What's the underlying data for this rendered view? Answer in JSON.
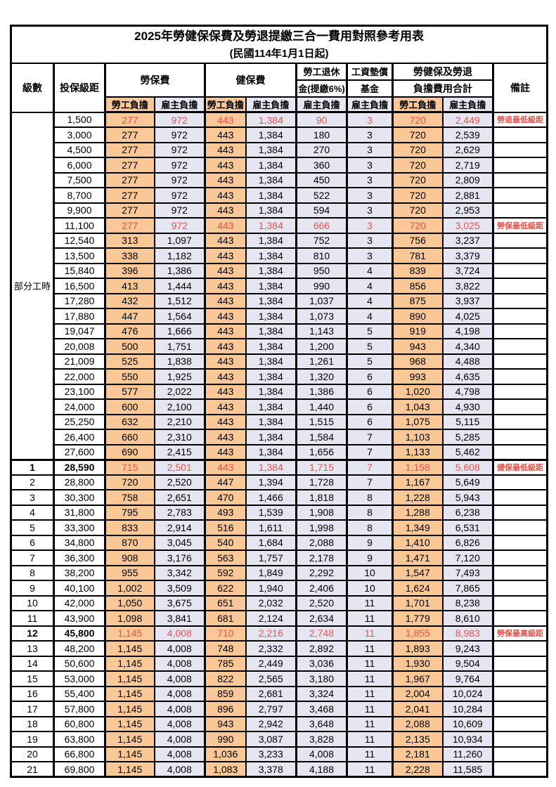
{
  "title": "2025年勞健保保費及勞退提繳三合一費用對照參考用表",
  "subtitle": "(民國114年1月1日起)",
  "columns": {
    "level": "級數",
    "bracket": "投保級距",
    "labor_insurance": "勞保費",
    "health_insurance": "健保費",
    "pension_line1": "勞工退休",
    "pension_line2": "金(提繳6%)",
    "wage_fund_line1": "工資墊償",
    "wage_fund_line2": "基金",
    "total_line1": "勞健保及勞退",
    "total_line2": "負擔費用合計",
    "note": "備註",
    "employee_burden": "勞工負擔",
    "employer_burden": "雇主負擔"
  },
  "colors": {
    "employee_bg": "#FAC896",
    "employer_bg": "#E6E5F2",
    "highlight_red": "#E8524C"
  },
  "part_time_label": "部分工時",
  "part_time_rowspan": 23,
  "rows": [
    {
      "level": "",
      "bracket": "1,500",
      "values": [
        "277",
        "972",
        "443",
        "1,384",
        "90",
        "3",
        "720",
        "2,449"
      ],
      "note": "勞退最低級距",
      "highlight": true
    },
    {
      "level": "",
      "bracket": "3,000",
      "values": [
        "277",
        "972",
        "443",
        "1,384",
        "180",
        "3",
        "720",
        "2,539"
      ],
      "note": ""
    },
    {
      "level": "",
      "bracket": "4,500",
      "values": [
        "277",
        "972",
        "443",
        "1,384",
        "270",
        "3",
        "720",
        "2,629"
      ],
      "note": ""
    },
    {
      "level": "",
      "bracket": "6,000",
      "values": [
        "277",
        "972",
        "443",
        "1,384",
        "360",
        "3",
        "720",
        "2,719"
      ],
      "note": ""
    },
    {
      "level": "",
      "bracket": "7,500",
      "values": [
        "277",
        "972",
        "443",
        "1,384",
        "450",
        "3",
        "720",
        "2,809"
      ],
      "note": ""
    },
    {
      "level": "",
      "bracket": "8,700",
      "values": [
        "277",
        "972",
        "443",
        "1,384",
        "522",
        "3",
        "720",
        "2,881"
      ],
      "note": ""
    },
    {
      "level": "",
      "bracket": "9,900",
      "values": [
        "277",
        "972",
        "443",
        "1,384",
        "594",
        "3",
        "720",
        "2,953"
      ],
      "note": ""
    },
    {
      "level": "",
      "bracket": "11,100",
      "values": [
        "277",
        "972",
        "443",
        "1,384",
        "666",
        "3",
        "720",
        "3,025"
      ],
      "note": "勞保最低級距",
      "highlight": true
    },
    {
      "level": "",
      "bracket": "12,540",
      "values": [
        "313",
        "1,097",
        "443",
        "1,384",
        "752",
        "3",
        "756",
        "3,237"
      ],
      "note": ""
    },
    {
      "level": "",
      "bracket": "13,500",
      "values": [
        "338",
        "1,182",
        "443",
        "1,384",
        "810",
        "3",
        "781",
        "3,379"
      ],
      "note": ""
    },
    {
      "level": "",
      "bracket": "15,840",
      "values": [
        "396",
        "1,386",
        "443",
        "1,384",
        "950",
        "4",
        "839",
        "3,724"
      ],
      "note": ""
    },
    {
      "level": "",
      "bracket": "16,500",
      "values": [
        "413",
        "1,444",
        "443",
        "1,384",
        "990",
        "4",
        "856",
        "3,822"
      ],
      "note": ""
    },
    {
      "level": "",
      "bracket": "17,280",
      "values": [
        "432",
        "1,512",
        "443",
        "1,384",
        "1,037",
        "4",
        "875",
        "3,937"
      ],
      "note": ""
    },
    {
      "level": "",
      "bracket": "17,880",
      "values": [
        "447",
        "1,564",
        "443",
        "1,384",
        "1,073",
        "4",
        "890",
        "4,025"
      ],
      "note": ""
    },
    {
      "level": "",
      "bracket": "19,047",
      "values": [
        "476",
        "1,666",
        "443",
        "1,384",
        "1,143",
        "5",
        "919",
        "4,198"
      ],
      "note": ""
    },
    {
      "level": "",
      "bracket": "20,008",
      "values": [
        "500",
        "1,751",
        "443",
        "1,384",
        "1,200",
        "5",
        "943",
        "4,340"
      ],
      "note": ""
    },
    {
      "level": "",
      "bracket": "21,009",
      "values": [
        "525",
        "1,838",
        "443",
        "1,384",
        "1,261",
        "5",
        "968",
        "4,488"
      ],
      "note": ""
    },
    {
      "level": "",
      "bracket": "22,000",
      "values": [
        "550",
        "1,925",
        "443",
        "1,384",
        "1,320",
        "6",
        "993",
        "4,635"
      ],
      "note": ""
    },
    {
      "level": "",
      "bracket": "23,100",
      "values": [
        "577",
        "2,022",
        "443",
        "1,384",
        "1,386",
        "6",
        "1,020",
        "4,798"
      ],
      "note": ""
    },
    {
      "level": "",
      "bracket": "24,000",
      "values": [
        "600",
        "2,100",
        "443",
        "1,384",
        "1,440",
        "6",
        "1,043",
        "4,930"
      ],
      "note": ""
    },
    {
      "level": "",
      "bracket": "25,250",
      "values": [
        "632",
        "2,210",
        "443",
        "1,384",
        "1,515",
        "6",
        "1,075",
        "5,115"
      ],
      "note": ""
    },
    {
      "level": "",
      "bracket": "26,400",
      "values": [
        "660",
        "2,310",
        "443",
        "1,384",
        "1,584",
        "7",
        "1,103",
        "5,285"
      ],
      "note": ""
    },
    {
      "level": "",
      "bracket": "27,600",
      "values": [
        "690",
        "2,415",
        "443",
        "1,384",
        "1,656",
        "7",
        "1,133",
        "5,462"
      ],
      "note": ""
    },
    {
      "level": "1",
      "bracket": "28,590",
      "values": [
        "715",
        "2,501",
        "443",
        "1,384",
        "1,715",
        "7",
        "1,158",
        "5,608"
      ],
      "note": "健保最低級距",
      "highlight": true,
      "id_bold": true,
      "thick_top": true
    },
    {
      "level": "2",
      "bracket": "28,800",
      "values": [
        "720",
        "2,520",
        "447",
        "1,394",
        "1,728",
        "7",
        "1,167",
        "5,649"
      ],
      "note": ""
    },
    {
      "level": "3",
      "bracket": "30,300",
      "values": [
        "758",
        "2,651",
        "470",
        "1,466",
        "1,818",
        "8",
        "1,228",
        "5,943"
      ],
      "note": ""
    },
    {
      "level": "4",
      "bracket": "31,800",
      "values": [
        "795",
        "2,783",
        "493",
        "1,539",
        "1,908",
        "8",
        "1,288",
        "6,238"
      ],
      "note": ""
    },
    {
      "level": "5",
      "bracket": "33,300",
      "values": [
        "833",
        "2,914",
        "516",
        "1,611",
        "1,998",
        "8",
        "1,349",
        "6,531"
      ],
      "note": ""
    },
    {
      "level": "6",
      "bracket": "34,800",
      "values": [
        "870",
        "3,045",
        "540",
        "1,684",
        "2,088",
        "9",
        "1,410",
        "6,826"
      ],
      "note": ""
    },
    {
      "level": "7",
      "bracket": "36,300",
      "values": [
        "908",
        "3,176",
        "563",
        "1,757",
        "2,178",
        "9",
        "1,471",
        "7,120"
      ],
      "note": ""
    },
    {
      "level": "8",
      "bracket": "38,200",
      "values": [
        "955",
        "3,342",
        "592",
        "1,849",
        "2,292",
        "10",
        "1,547",
        "7,493"
      ],
      "note": ""
    },
    {
      "level": "9",
      "bracket": "40,100",
      "values": [
        "1,002",
        "3,509",
        "622",
        "1,940",
        "2,406",
        "10",
        "1,624",
        "7,865"
      ],
      "note": ""
    },
    {
      "level": "10",
      "bracket": "42,000",
      "values": [
        "1,050",
        "3,675",
        "651",
        "2,032",
        "2,520",
        "11",
        "1,701",
        "8,238"
      ],
      "note": ""
    },
    {
      "level": "11",
      "bracket": "43,900",
      "values": [
        "1,098",
        "3,841",
        "681",
        "2,124",
        "2,634",
        "11",
        "1,779",
        "8,610"
      ],
      "note": ""
    },
    {
      "level": "12",
      "bracket": "45,800",
      "values": [
        "1,145",
        "4,008",
        "710",
        "2,216",
        "2,748",
        "11",
        "1,855",
        "8,983"
      ],
      "note": "勞保最高級距",
      "highlight": true,
      "id_bold": true
    },
    {
      "level": "13",
      "bracket": "48,200",
      "values": [
        "1,145",
        "4,008",
        "748",
        "2,332",
        "2,892",
        "11",
        "1,893",
        "9,243"
      ],
      "note": ""
    },
    {
      "level": "14",
      "bracket": "50,600",
      "values": [
        "1,145",
        "4,008",
        "785",
        "2,449",
        "3,036",
        "11",
        "1,930",
        "9,504"
      ],
      "note": ""
    },
    {
      "level": "15",
      "bracket": "53,000",
      "values": [
        "1,145",
        "4,008",
        "822",
        "2,565",
        "3,180",
        "11",
        "1,967",
        "9,764"
      ],
      "note": ""
    },
    {
      "level": "16",
      "bracket": "55,400",
      "values": [
        "1,145",
        "4,008",
        "859",
        "2,681",
        "3,324",
        "11",
        "2,004",
        "10,024"
      ],
      "note": ""
    },
    {
      "level": "17",
      "bracket": "57,800",
      "values": [
        "1,145",
        "4,008",
        "896",
        "2,797",
        "3,468",
        "11",
        "2,041",
        "10,284"
      ],
      "note": ""
    },
    {
      "level": "18",
      "bracket": "60,800",
      "values": [
        "1,145",
        "4,008",
        "943",
        "2,942",
        "3,648",
        "11",
        "2,088",
        "10,609"
      ],
      "note": ""
    },
    {
      "level": "19",
      "bracket": "63,800",
      "values": [
        "1,145",
        "4,008",
        "990",
        "3,087",
        "3,828",
        "11",
        "2,135",
        "10,934"
      ],
      "note": ""
    },
    {
      "level": "20",
      "bracket": "66,800",
      "values": [
        "1,145",
        "4,008",
        "1,036",
        "3,233",
        "4,008",
        "11",
        "2,181",
        "11,260"
      ],
      "note": ""
    },
    {
      "level": "21",
      "bracket": "69,800",
      "values": [
        "1,145",
        "4,008",
        "1,083",
        "3,378",
        "4,188",
        "11",
        "2,228",
        "11,585"
      ],
      "note": ""
    }
  ]
}
